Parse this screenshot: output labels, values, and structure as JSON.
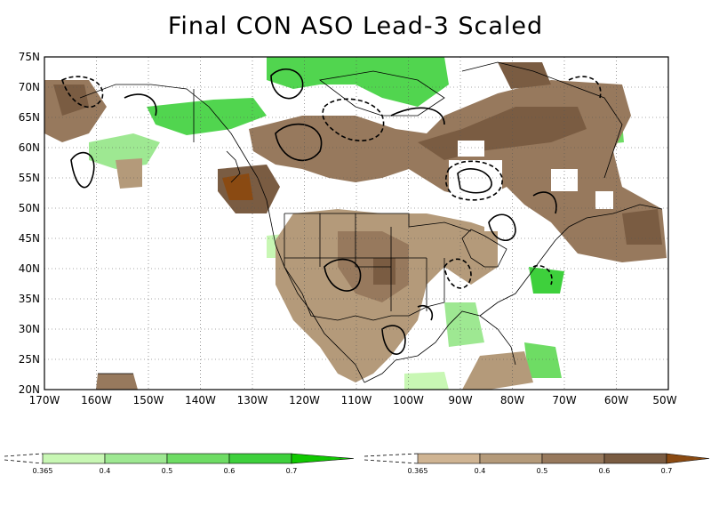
{
  "title": "Final CON ASO Lead-3 Scaled",
  "map": {
    "lat_labels": [
      "75N",
      "70N",
      "65N",
      "60N",
      "55N",
      "50N",
      "45N",
      "40N",
      "35N",
      "30N",
      "25N",
      "20N"
    ],
    "lon_labels": [
      "170W",
      "160W",
      "150W",
      "140W",
      "130W",
      "120W",
      "110W",
      "100W",
      "90W",
      "80W",
      "70W",
      "60W",
      "50W"
    ],
    "lat_range": [
      20,
      75
    ],
    "lon_range": [
      -170,
      -50
    ],
    "grid_style": "dotted",
    "positive_color_scale": "greens",
    "negative_color_scale": "browns",
    "contours": "solid and dashed black lines"
  },
  "legend_green": {
    "ticks": [
      "0.365",
      "0.4",
      "0.5",
      "0.6",
      "0.7"
    ],
    "colors": [
      "#c8f7b4",
      "#9ee892",
      "#6edc64",
      "#3ed03c",
      "#10c800"
    ]
  },
  "legend_brown": {
    "ticks": [
      "0.365",
      "0.4",
      "0.5",
      "0.6",
      "0.7"
    ],
    "colors": [
      "#cfb493",
      "#b49a7a",
      "#97795d",
      "#7a5c42",
      "#8a4a12"
    ]
  }
}
